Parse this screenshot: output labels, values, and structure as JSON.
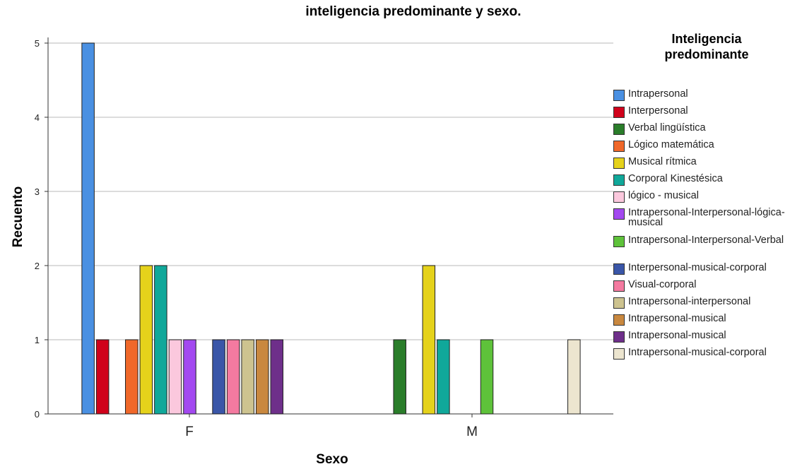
{
  "chart_data": {
    "type": "bar",
    "title": "inteligencia predominante y sexo.",
    "xlabel": "Sexo",
    "ylabel": "Recuento",
    "categories": [
      "F",
      "M"
    ],
    "ylim": [
      0,
      5
    ],
    "yticks": [
      "0",
      "1",
      "2",
      "3",
      "4",
      "5"
    ],
    "grid": true,
    "legend_title": [
      "Inteligencia",
      "predominante"
    ],
    "legend_position": "right",
    "series": [
      {
        "name": "Intrapersonal",
        "color": "#4a90e2",
        "values": [
          5,
          0
        ]
      },
      {
        "name": "Interpersonal",
        "color": "#d0021b",
        "values": [
          1,
          0
        ]
      },
      {
        "name": "Verbal lingüística",
        "color": "#2a7d2a",
        "values": [
          0,
          1
        ]
      },
      {
        "name": "Lógico matemática",
        "color": "#f0682a",
        "values": [
          1,
          0
        ]
      },
      {
        "name": "Musical rítmica",
        "color": "#e5d21b",
        "values": [
          2,
          2
        ]
      },
      {
        "name": "Corporal Kinestésica",
        "color": "#10a89a",
        "values": [
          2,
          1
        ]
      },
      {
        "name": "lógico - musical",
        "color": "#fbc8dd",
        "values": [
          1,
          0
        ]
      },
      {
        "name": "Intrapersonal-Interpersonal-lógica-musical",
        "color": "#a349f0",
        "values": [
          1,
          0
        ]
      },
      {
        "name": "Intrapersonal-Interpersonal-Verbal",
        "color": "#5ec23a",
        "values": [
          0,
          1
        ]
      },
      {
        "name": "Interpersonal-musical-corporal",
        "color": "#3a56a8",
        "values": [
          1,
          0
        ]
      },
      {
        "name": "Visual-corporal",
        "color": "#f47aa0",
        "values": [
          1,
          0
        ]
      },
      {
        "name": "Intrapersonal-interpersonal",
        "color": "#cdc38f",
        "values": [
          1,
          0
        ]
      },
      {
        "name": "Intrapersonal-musical",
        "color": "#c9883f",
        "values": [
          1,
          0
        ]
      },
      {
        "name": "Intrapersonal-musical",
        "color": "#6e2f8a",
        "values": [
          1,
          0
        ]
      },
      {
        "name": "Intrapersonal-musical-corporal",
        "color": "#ece5cf",
        "values": [
          0,
          1
        ]
      }
    ]
  }
}
